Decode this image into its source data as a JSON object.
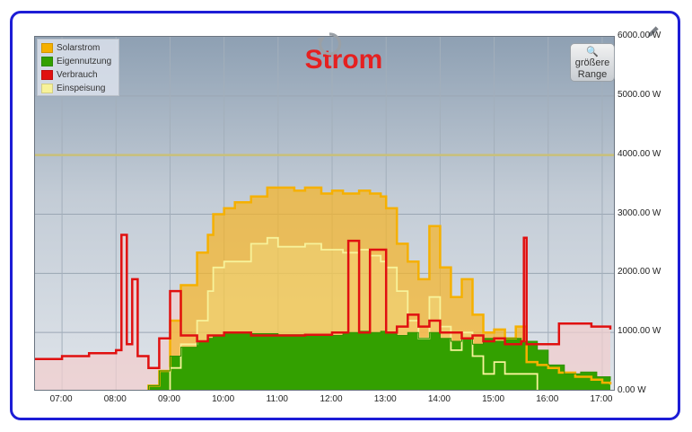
{
  "chart_data": {
    "type": "area",
    "title": "Strom",
    "legend": [
      {
        "name": "Solarstrom",
        "color": "#f5b000"
      },
      {
        "name": "Eigennutzung",
        "color": "#33a000"
      },
      {
        "name": "Verbrauch",
        "color": "#e01010"
      },
      {
        "name": "Einspeisung",
        "color": "#f7f29a"
      }
    ],
    "y_ticks": [
      "0.00 W",
      "1000.00 W",
      "2000.00 W",
      "3000.00 W",
      "4000.00 W",
      "5000.00 W",
      "6000.00 W"
    ],
    "x_ticks": [
      "07:00",
      "08:00",
      "09:00",
      "10:00",
      "11:00",
      "12:00",
      "13:00",
      "14:00",
      "15:00",
      "16:00",
      "17:00"
    ],
    "xlim": [
      "06:30",
      "17:15"
    ],
    "ylim": [
      0,
      6000
    ],
    "reference_line_w": 4000,
    "series": [
      {
        "name": "Solarstrom",
        "x": [
          6.5,
          8.4,
          8.6,
          8.8,
          9.0,
          9.2,
          9.5,
          9.7,
          9.8,
          10.0,
          10.2,
          10.5,
          10.8,
          11.0,
          11.3,
          11.5,
          11.8,
          12.0,
          12.2,
          12.5,
          12.7,
          12.9,
          13.0,
          13.2,
          13.4,
          13.6,
          13.8,
          14.0,
          14.2,
          14.4,
          14.6,
          14.8,
          15.0,
          15.2,
          15.4,
          15.6,
          15.8,
          16.0,
          16.2,
          16.5,
          16.8,
          17.0,
          17.15
        ],
        "values": [
          0,
          0,
          100,
          350,
          1200,
          1800,
          2350,
          2650,
          3000,
          3100,
          3200,
          3300,
          3450,
          3450,
          3400,
          3450,
          3350,
          3400,
          3350,
          3400,
          3350,
          3300,
          3100,
          2500,
          2200,
          1900,
          2800,
          2100,
          1600,
          1900,
          1300,
          1000,
          1050,
          900,
          1100,
          500,
          450,
          400,
          320,
          250,
          200,
          150,
          120
        ]
      },
      {
        "name": "Eigennutzung",
        "x": [
          6.5,
          8.4,
          8.6,
          8.8,
          9.0,
          9.2,
          9.5,
          9.7,
          9.8,
          10.0,
          10.5,
          11.0,
          11.5,
          12.0,
          12.2,
          12.5,
          12.7,
          12.9,
          13.0,
          13.2,
          13.4,
          13.6,
          13.8,
          14.0,
          14.2,
          14.4,
          14.6,
          14.8,
          15.0,
          15.2,
          15.5,
          15.8,
          16.0,
          16.3,
          16.6,
          16.9,
          17.15
        ],
        "values": [
          0,
          0,
          100,
          350,
          600,
          750,
          850,
          900,
          950,
          1000,
          980,
          960,
          960,
          950,
          1000,
          1020,
          1000,
          1020,
          1000,
          950,
          1000,
          900,
          1000,
          900,
          850,
          900,
          800,
          900,
          850,
          900,
          850,
          700,
          450,
          300,
          330,
          250,
          180
        ]
      },
      {
        "name": "Verbrauch",
        "x": [
          6.5,
          7.0,
          7.5,
          8.0,
          8.1,
          8.2,
          8.3,
          8.4,
          8.6,
          8.8,
          9.0,
          9.2,
          9.5,
          9.7,
          10.0,
          10.5,
          11.0,
          11.5,
          12.0,
          12.3,
          12.5,
          12.7,
          13.0,
          13.2,
          13.4,
          13.6,
          13.8,
          14.0,
          14.2,
          14.4,
          14.6,
          14.8,
          15.0,
          15.2,
          15.5,
          15.55,
          15.6,
          15.8,
          16.0,
          16.2,
          16.5,
          16.8,
          17.0,
          17.15
        ],
        "values": [
          550,
          600,
          650,
          700,
          2650,
          800,
          1900,
          600,
          400,
          900,
          1700,
          950,
          850,
          950,
          1000,
          950,
          950,
          960,
          1000,
          2550,
          1000,
          2400,
          1000,
          1100,
          1300,
          1100,
          1200,
          1000,
          1000,
          900,
          950,
          850,
          900,
          800,
          850,
          2600,
          800,
          800,
          800,
          1150,
          1150,
          1100,
          1100,
          1050
        ]
      },
      {
        "name": "Einspeisung",
        "x": [
          6.5,
          8.4,
          8.6,
          8.8,
          9.0,
          9.2,
          9.5,
          9.7,
          9.8,
          10.0,
          10.5,
          10.8,
          11.0,
          11.5,
          11.8,
          12.0,
          12.2,
          12.5,
          12.7,
          12.9,
          13.0,
          13.2,
          13.4,
          13.6,
          13.8,
          14.0,
          14.2,
          14.4,
          14.6,
          14.8,
          15.0,
          15.2,
          15.5,
          15.8,
          16.0,
          16.3,
          16.6,
          16.9,
          17.15
        ],
        "values": [
          0,
          0,
          0,
          0,
          400,
          800,
          1200,
          1700,
          2100,
          2200,
          2500,
          2600,
          2450,
          2500,
          2400,
          2400,
          2350,
          2400,
          2300,
          2200,
          2100,
          1700,
          1200,
          900,
          1600,
          1100,
          700,
          1000,
          600,
          300,
          500,
          300,
          300,
          0,
          0,
          0,
          0,
          0,
          0
        ]
      }
    ]
  },
  "controls": {
    "range_button_line1": "größere",
    "range_button_line2": "Range",
    "range_button_icon": "magnifier-icon",
    "refresh_icon": "refresh-icon",
    "edit_icon": "pencil-icon"
  }
}
